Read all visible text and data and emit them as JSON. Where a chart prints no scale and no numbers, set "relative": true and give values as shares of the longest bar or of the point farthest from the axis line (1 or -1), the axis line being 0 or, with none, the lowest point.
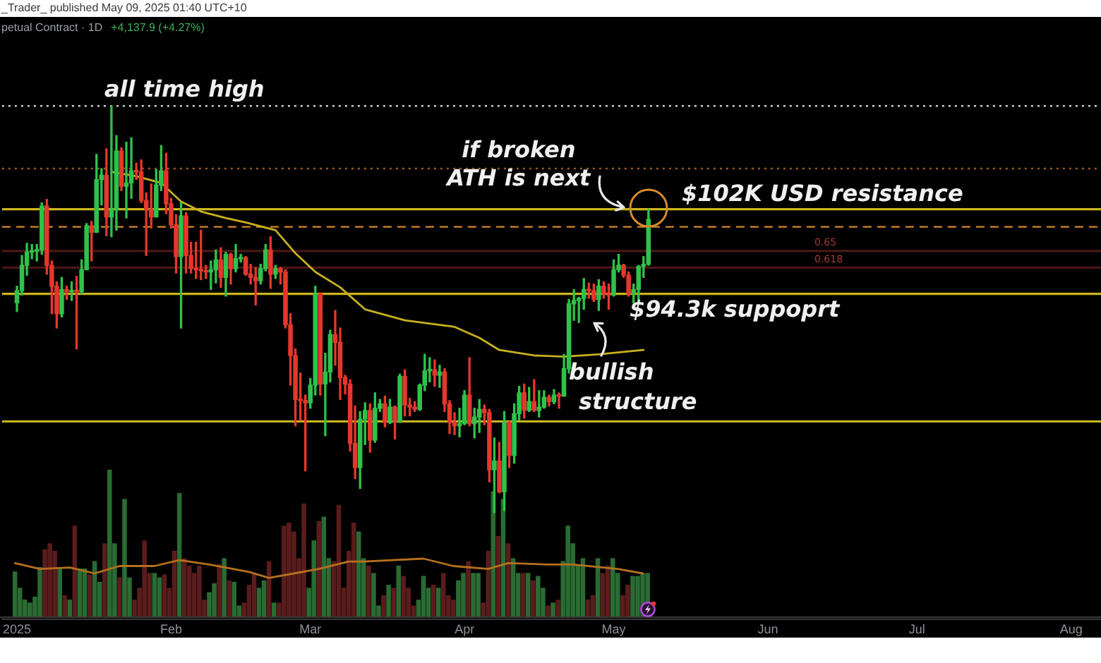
{
  "chart_data": [
    {
      "type": "candlestick",
      "title": "petual Contract · 1D",
      "subtitle": "+4,137.9 (+4.27%)",
      "annotations": [
        "_Trader_ published May 09, 2025 01:40 UTC+10",
        {
          "text": "if broken\nATH is next",
          "x": "2025-05-08",
          "y": 102000
        },
        "bullish\nstructure",
        "0.65",
        "0.618"
      ],
      "xlim": [
        "2024-12-29",
        "2025-08-07"
      ],
      "xticks": [
        {
          "value": "2025-01-01",
          "label": "2025"
        },
        {
          "value": "2025-02-01",
          "label": "Feb"
        },
        {
          "value": "2025-03-01",
          "label": "Mar"
        },
        {
          "value": "2025-04-01",
          "label": "Apr"
        },
        {
          "value": "2025-05-01",
          "label": "May"
        },
        {
          "value": "2025-06-01",
          "label": "Jun"
        },
        {
          "value": "2025-07-01",
          "label": "Jul"
        },
        {
          "value": "2025-08-01",
          "label": "Aug"
        }
      ],
      "ylim": [
        64700,
        119500
      ],
      "tick_labels": "x",
      "ref_lines": [
        {
          "axis": "y",
          "value": 111400,
          "label": "all time high",
          "color": "#cfcfcf",
          "line_style": "dotted"
        },
        {
          "axis": "y",
          "value": 105700,
          "color": "#9a5a1c",
          "line_style": "dotted"
        },
        {
          "axis": "y",
          "value": 102000,
          "label": "$102K USD resistance",
          "color": "#cbb41e",
          "line_style": "solid"
        },
        {
          "axis": "y",
          "value": 100400,
          "color": "#d4862a",
          "line_style": "dashed"
        },
        {
          "axis": "y",
          "value": 98200,
          "color": "#4a1717",
          "line_style": "solid"
        },
        {
          "axis": "y",
          "value": 96700,
          "color": "#4a1717",
          "line_style": "solid"
        },
        {
          "axis": "y",
          "value": 94300,
          "label": "$94.3k suppoprt",
          "color": "#cbb41e",
          "line_style": "solid"
        },
        {
          "axis": "y",
          "value": 82700,
          "color": "#cbb41e",
          "line_style": "solid"
        }
      ],
      "series": [
        {
          "x": [
            "2025-01-01",
            "2025-01-02",
            "2025-01-03",
            "2025-01-04",
            "2025-01-05",
            "2025-01-06",
            "2025-01-07",
            "2025-01-08",
            "2025-01-09",
            "2025-01-10",
            "2025-01-11",
            "2025-01-12",
            "2025-01-13",
            "2025-01-14",
            "2025-01-15",
            "2025-01-16",
            "2025-01-17",
            "2025-01-18",
            "2025-01-19",
            "2025-01-20",
            "2025-01-21",
            "2025-01-22",
            "2025-01-23",
            "2025-01-24",
            "2025-01-25",
            "2025-01-26",
            "2025-01-27",
            "2025-01-28",
            "2025-01-29",
            "2025-01-30",
            "2025-01-31",
            "2025-02-01",
            "2025-02-02",
            "2025-02-03",
            "2025-02-04",
            "2025-02-05",
            "2025-02-06",
            "2025-02-07",
            "2025-02-08",
            "2025-02-09",
            "2025-02-10",
            "2025-02-11",
            "2025-02-12",
            "2025-02-13",
            "2025-02-14",
            "2025-02-15",
            "2025-02-16",
            "2025-02-17",
            "2025-02-18",
            "2025-02-19",
            "2025-02-20",
            "2025-02-21",
            "2025-02-22",
            "2025-02-23",
            "2025-02-24",
            "2025-02-25",
            "2025-02-26",
            "2025-02-27",
            "2025-02-28",
            "2025-03-01",
            "2025-03-02",
            "2025-03-03",
            "2025-03-04",
            "2025-03-05",
            "2025-03-06",
            "2025-03-07",
            "2025-03-08",
            "2025-03-09",
            "2025-03-10",
            "2025-03-11",
            "2025-03-12",
            "2025-03-13",
            "2025-03-14",
            "2025-03-15",
            "2025-03-16",
            "2025-03-17",
            "2025-03-18",
            "2025-03-19",
            "2025-03-20",
            "2025-03-21",
            "2025-03-22",
            "2025-03-23",
            "2025-03-24",
            "2025-03-25",
            "2025-03-26",
            "2025-03-27",
            "2025-03-28",
            "2025-03-29",
            "2025-03-30",
            "2025-03-31",
            "2025-04-01",
            "2025-04-02",
            "2025-04-03",
            "2025-04-04",
            "2025-04-05",
            "2025-04-06",
            "2025-04-07",
            "2025-04-08",
            "2025-04-09",
            "2025-04-10",
            "2025-04-11",
            "2025-04-12",
            "2025-04-13",
            "2025-04-14",
            "2025-04-15",
            "2025-04-16",
            "2025-04-17",
            "2025-04-18",
            "2025-04-19",
            "2025-04-20",
            "2025-04-21",
            "2025-04-22",
            "2025-04-23",
            "2025-04-24",
            "2025-04-25",
            "2025-04-26",
            "2025-04-27",
            "2025-04-28",
            "2025-04-29",
            "2025-04-30",
            "2025-05-01",
            "2025-05-02",
            "2025-05-03",
            "2025-05-04",
            "2025-05-05",
            "2025-05-06",
            "2025-05-07",
            "2025-05-08"
          ],
          "ohlc": [
            [
              93500,
              95000,
              92700,
              94600
            ],
            [
              94600,
              97800,
              94200,
              96900
            ],
            [
              96900,
              98900,
              96000,
              98100
            ],
            [
              98100,
              98800,
              97500,
              98200
            ],
            [
              98200,
              98800,
              97300,
              98300
            ],
            [
              98300,
              102600,
              97900,
              102300
            ],
            [
              102300,
              102900,
              96100,
              96900
            ],
            [
              96900,
              97300,
              92500,
              95000
            ],
            [
              95000,
              95400,
              91200,
              92500
            ],
            [
              92500,
              95800,
              92200,
              94700
            ],
            [
              94700,
              95000,
              93800,
              94500
            ],
            [
              94500,
              95400,
              93700,
              94600
            ],
            [
              94600,
              95900,
              89300,
              94500
            ],
            [
              94500,
              97400,
              94300,
              96500
            ],
            [
              96500,
              100700,
              96500,
              100500
            ],
            [
              100500,
              100900,
              97300,
              99900
            ],
            [
              99900,
              107000,
              99900,
              104700
            ],
            [
              104700,
              105700,
              102400,
              105100
            ],
            [
              105100,
              107500,
              99600,
              101300
            ],
            [
              101300,
              111400,
              99500,
              102000
            ],
            [
              102000,
              108700,
              100100,
              107300
            ],
            [
              107300,
              107600,
              103700,
              104100
            ],
            [
              104100,
              108100,
              101200,
              104400
            ],
            [
              104400,
              108500,
              103000,
              105500
            ],
            [
              105500,
              106200,
              104700,
              105400
            ],
            [
              105400,
              106500,
              102600,
              102800
            ],
            [
              102800,
              103500,
              97800,
              102000
            ],
            [
              102000,
              104300,
              100300,
              101300
            ],
            [
              101300,
              105600,
              101300,
              104200
            ],
            [
              104200,
              107800,
              103700,
              105500
            ],
            [
              105500,
              107100,
              101600,
              102500
            ],
            [
              102500,
              103000,
              100300,
              100600
            ],
            [
              100600,
              101500,
              96200,
              97700
            ],
            [
              97700,
              102600,
              91200,
              101400
            ],
            [
              101400,
              101700,
              96200,
              97800
            ],
            [
              97800,
              99000,
              96200,
              96600
            ],
            [
              96600,
              99000,
              95700,
              96500
            ],
            [
              96500,
              100100,
              95600,
              96400
            ],
            [
              96400,
              96900,
              95700,
              96300
            ],
            [
              96300,
              97300,
              94700,
              96500
            ],
            [
              96500,
              98300,
              95300,
              97400
            ],
            [
              97400,
              98500,
              94900,
              95800
            ],
            [
              95800,
              98100,
              94100,
              97900
            ],
            [
              97900,
              98000,
              95200,
              96600
            ],
            [
              96600,
              98800,
              96300,
              97500
            ],
            [
              97500,
              97900,
              97200,
              97600
            ],
            [
              97600,
              97700,
              96000,
              96100
            ],
            [
              96100,
              97000,
              95200,
              95800
            ],
            [
              95800,
              96700,
              93300,
              95500
            ],
            [
              95500,
              97000,
              95200,
              96600
            ],
            [
              96600,
              98800,
              96400,
              98300
            ],
            [
              98300,
              99500,
              94800,
              96100
            ],
            [
              96100,
              96900,
              95700,
              96600
            ],
            [
              96600,
              96700,
              95200,
              96300
            ],
            [
              96300,
              96500,
              91200,
              91500
            ],
            [
              91500,
              92500,
              86000,
              88700
            ],
            [
              88700,
              89300,
              82300,
              84700
            ],
            [
              84700,
              87100,
              82800,
              84600
            ],
            [
              84600,
              85100,
              78200,
              84400
            ],
            [
              84400,
              86600,
              83900,
              86000
            ],
            [
              86000,
              95000,
              85100,
              94300
            ],
            [
              94300,
              94400,
              85100,
              86100
            ],
            [
              86100,
              88900,
              81400,
              87200
            ],
            [
              87200,
              91000,
              86300,
              90600
            ],
            [
              90600,
              92800,
              87800,
              89900
            ],
            [
              89900,
              91200,
              84700,
              86700
            ],
            [
              86700,
              86900,
              85200,
              86100
            ],
            [
              86100,
              86500,
              80000,
              80700
            ],
            [
              80700,
              84100,
              77500,
              78500
            ],
            [
              78500,
              83600,
              76600,
              82900
            ],
            [
              82900,
              84400,
              80600,
              83700
            ],
            [
              83700,
              84300,
              79900,
              81000
            ],
            [
              81000,
              85300,
              80800,
              83900
            ],
            [
              83900,
              84700,
              83600,
              84300
            ],
            [
              84300,
              85000,
              82200,
              82600
            ],
            [
              82600,
              84700,
              82500,
              84000
            ],
            [
              84000,
              84100,
              81100,
              82700
            ],
            [
              82700,
              87000,
              82600,
              86800
            ],
            [
              86800,
              87400,
              83200,
              84200
            ],
            [
              84200,
              84800,
              83200,
              84000
            ],
            [
              84000,
              84500,
              83600,
              83800
            ],
            [
              83800,
              86100,
              83700,
              86000
            ],
            [
              86000,
              88800,
              85500,
              87300
            ],
            [
              87300,
              88500,
              86300,
              87400
            ],
            [
              87400,
              88300,
              85900,
              86900
            ],
            [
              86900,
              87800,
              85800,
              87200
            ],
            [
              87200,
              87500,
              83600,
              84300
            ],
            [
              84300,
              84600,
              81600,
              82600
            ],
            [
              82600,
              83500,
              81500,
              82300
            ],
            [
              82300,
              83900,
              81300,
              82500
            ],
            [
              82500,
              85500,
              82400,
              85100
            ],
            [
              85100,
              88500,
              82300,
              82500
            ],
            [
              82500,
              83900,
              81200,
              83100
            ],
            [
              83100,
              84700,
              81700,
              83800
            ],
            [
              83800,
              84200,
              82400,
              83500
            ],
            [
              83500,
              83800,
              77200,
              78300
            ],
            [
              78300,
              81200,
              74400,
              79100
            ],
            [
              79100,
              80800,
              76200,
              76300
            ],
            [
              76300,
              83600,
              74600,
              82600
            ],
            [
              82600,
              82700,
              78500,
              79600
            ],
            [
              79600,
              84300,
              78900,
              83400
            ],
            [
              83400,
              85900,
              82800,
              85300
            ],
            [
              85300,
              86100,
              83000,
              83700
            ],
            [
              83700,
              85800,
              83600,
              84500
            ],
            [
              84500,
              86500,
              83600,
              83700
            ],
            [
              83700,
              85500,
              83100,
              84000
            ],
            [
              84000,
              85500,
              83900,
              84900
            ],
            [
              84900,
              85100,
              84100,
              84500
            ],
            [
              84500,
              85600,
              84300,
              85100
            ],
            [
              85100,
              85300,
              83900,
              85000
            ],
            [
              85000,
              88800,
              85000,
              87500
            ],
            [
              87500,
              93800,
              87100,
              93400
            ],
            [
              93400,
              94700,
              91900,
              93700
            ],
            [
              93700,
              94000,
              91700,
              93900
            ],
            [
              93900,
              95700,
              92900,
              94700
            ],
            [
              94700,
              95300,
              93900,
              94600
            ],
            [
              94600,
              95200,
              93600,
              93800
            ],
            [
              93800,
              95600,
              92800,
              95000
            ],
            [
              95000,
              95400,
              93900,
              94300
            ],
            [
              94300,
              95200,
              92900,
              94200
            ],
            [
              94200,
              97400,
              94100,
              96500
            ],
            [
              96500,
              97900,
              96300,
              96900
            ],
            [
              96900,
              97000,
              95800,
              96000
            ],
            [
              96000,
              96300,
              94100,
              94300
            ],
            [
              94300,
              95200,
              93500,
              94700
            ],
            [
              94700,
              96900,
              93400,
              96800
            ],
            [
              96800,
              97700,
              95800,
              97000
            ],
            [
              97000,
              102000,
              96900,
              101100
            ]
          ],
          "colors": [
            "#2fc24a",
            "#2fc24a",
            "#2fc24a",
            "#2fc24a",
            "#2fc24a",
            "#2fc24a",
            "#e5372d",
            "#e5372d",
            "#e5372d",
            "#2fc24a",
            "#e5372d",
            "#2fc24a",
            "#e5372d",
            "#2fc24a",
            "#2fc24a",
            "#e5372d",
            "#2fc24a",
            "#2fc24a",
            "#e5372d",
            "#2fc24a",
            "#2fc24a",
            "#e5372d",
            "#2fc24a",
            "#2fc24a",
            "#e5372d",
            "#e5372d",
            "#e5372d",
            "#e5372d",
            "#2fc24a",
            "#2fc24a",
            "#e5372d",
            "#e5372d",
            "#e5372d",
            "#2fc24a",
            "#e5372d",
            "#e5372d",
            "#e5372d",
            "#e5372d",
            "#e5372d",
            "#2fc24a",
            "#2fc24a",
            "#e5372d",
            "#2fc24a",
            "#e5372d",
            "#2fc24a",
            "#2fc24a",
            "#e5372d",
            "#e5372d",
            "#e5372d",
            "#2fc24a",
            "#2fc24a",
            "#e5372d",
            "#2fc24a",
            "#e5372d",
            "#e5372d",
            "#e5372d",
            "#e5372d",
            "#e5372d",
            "#e5372d",
            "#2fc24a",
            "#2fc24a",
            "#e5372d",
            "#2fc24a",
            "#2fc24a",
            "#e5372d",
            "#e5372d",
            "#e5372d",
            "#e5372d",
            "#e5372d",
            "#2fc24a",
            "#2fc24a",
            "#e5372d",
            "#2fc24a",
            "#2fc24a",
            "#e5372d",
            "#2fc24a",
            "#e5372d",
            "#2fc24a",
            "#e5372d",
            "#e5372d",
            "#e5372d",
            "#2fc24a",
            "#2fc24a",
            "#2fc24a",
            "#e5372d",
            "#2fc24a",
            "#e5372d",
            "#e5372d",
            "#e5372d",
            "#2fc24a",
            "#2fc24a",
            "#e5372d",
            "#2fc24a",
            "#2fc24a",
            "#e5372d",
            "#e5372d",
            "#2fc24a",
            "#e5372d",
            "#2fc24a",
            "#e5372d",
            "#2fc24a",
            "#2fc24a",
            "#e5372d",
            "#2fc24a",
            "#e5372d",
            "#2fc24a",
            "#2fc24a",
            "#e5372d",
            "#2fc24a",
            "#e5372d",
            "#2fc24a",
            "#2fc24a",
            "#2fc24a",
            "#2fc24a",
            "#2fc24a",
            "#e5372d",
            "#e5372d",
            "#2fc24a",
            "#e5372d",
            "#e5372d",
            "#2fc24a",
            "#2fc24a",
            "#e5372d",
            "#e5372d",
            "#2fc24a",
            "#2fc24a",
            "#2fc24a",
            "#2fc24a"
          ]
        },
        {
          "type": "line",
          "x": [
            "2025-01-20",
            "2025-01-25",
            "2025-01-30",
            "2025-02-03",
            "2025-02-07",
            "2025-02-12",
            "2025-02-16",
            "2025-02-22",
            "2025-02-26",
            "2025-03-02",
            "2025-03-07",
            "2025-03-12",
            "2025-03-20",
            "2025-03-30",
            "2025-04-04",
            "2025-04-08",
            "2025-04-15",
            "2025-04-21",
            "2025-04-28",
            "2025-05-07"
          ],
          "values": [
            105400,
            105000,
            104400,
            102700,
            101800,
            101200,
            100800,
            100100,
            98000,
            96300,
            94900,
            92900,
            91900,
            91300,
            90300,
            89200,
            88700,
            88600,
            88800,
            89200
          ],
          "color": "#c8b020"
        }
      ]
    },
    {
      "type": "bar",
      "relative": true,
      "xlim": [
        "2024-12-29",
        "2025-08-07"
      ],
      "tick_labels": false,
      "x": [
        "2025-01-01",
        "2025-01-02",
        "2025-01-03",
        "2025-01-04",
        "2025-01-05",
        "2025-01-06",
        "2025-01-07",
        "2025-01-08",
        "2025-01-09",
        "2025-01-10",
        "2025-01-11",
        "2025-01-12",
        "2025-01-13",
        "2025-01-14",
        "2025-01-15",
        "2025-01-16",
        "2025-01-17",
        "2025-01-18",
        "2025-01-19",
        "2025-01-20",
        "2025-01-21",
        "2025-01-22",
        "2025-01-23",
        "2025-01-24",
        "2025-01-25",
        "2025-01-26",
        "2025-01-27",
        "2025-01-28",
        "2025-01-29",
        "2025-01-30",
        "2025-01-31",
        "2025-02-01",
        "2025-02-02",
        "2025-02-03",
        "2025-02-04",
        "2025-02-05",
        "2025-02-06",
        "2025-02-07",
        "2025-02-08",
        "2025-02-09",
        "2025-02-10",
        "2025-02-11",
        "2025-02-12",
        "2025-02-13",
        "2025-02-14",
        "2025-02-15",
        "2025-02-16",
        "2025-02-17",
        "2025-02-18",
        "2025-02-19",
        "2025-02-20",
        "2025-02-21",
        "2025-02-22",
        "2025-02-23",
        "2025-02-24",
        "2025-02-25",
        "2025-02-26",
        "2025-02-27",
        "2025-02-28",
        "2025-03-01",
        "2025-03-02",
        "2025-03-03",
        "2025-03-04",
        "2025-03-05",
        "2025-03-06",
        "2025-03-07",
        "2025-03-08",
        "2025-03-09",
        "2025-03-10",
        "2025-03-11",
        "2025-03-12",
        "2025-03-13",
        "2025-03-14",
        "2025-03-15",
        "2025-03-16",
        "2025-03-17",
        "2025-03-18",
        "2025-03-19",
        "2025-03-20",
        "2025-03-21",
        "2025-03-22",
        "2025-03-23",
        "2025-03-24",
        "2025-03-25",
        "2025-03-26",
        "2025-03-27",
        "2025-03-28",
        "2025-03-29",
        "2025-03-30",
        "2025-03-31",
        "2025-04-01",
        "2025-04-02",
        "2025-04-03",
        "2025-04-04",
        "2025-04-05",
        "2025-04-06",
        "2025-04-07",
        "2025-04-08",
        "2025-04-09",
        "2025-04-10",
        "2025-04-11",
        "2025-04-12",
        "2025-04-13",
        "2025-04-14",
        "2025-04-15",
        "2025-04-16",
        "2025-04-17",
        "2025-04-18",
        "2025-04-19",
        "2025-04-20",
        "2025-04-21",
        "2025-04-22",
        "2025-04-23",
        "2025-04-24",
        "2025-04-25",
        "2025-04-26",
        "2025-04-27",
        "2025-04-28",
        "2025-04-29",
        "2025-04-30",
        "2025-05-01",
        "2025-05-02",
        "2025-05-03",
        "2025-05-04",
        "2025-05-05",
        "2025-05-06",
        "2025-05-07",
        "2025-05-08"
      ],
      "series": [
        {
          "values": [
            0.31,
            0.2,
            0.12,
            0.1,
            0.14,
            0.34,
            0.46,
            0.5,
            0.45,
            0.34,
            0.15,
            0.12,
            0.62,
            0.33,
            0.33,
            0.29,
            0.38,
            0.24,
            0.5,
            1.0,
            0.5,
            0.27,
            0.8,
            0.27,
            0.12,
            0.2,
            0.52,
            0.3,
            0.3,
            0.27,
            0.29,
            0.2,
            0.45,
            0.84,
            0.4,
            0.35,
            0.3,
            0.35,
            0.12,
            0.17,
            0.23,
            0.36,
            0.4,
            0.25,
            0.24,
            0.08,
            0.1,
            0.22,
            0.3,
            0.2,
            0.25,
            0.38,
            0.1,
            0.1,
            0.62,
            0.64,
            0.58,
            0.4,
            0.77,
            0.2,
            0.52,
            0.65,
            0.68,
            0.4,
            0.38,
            0.76,
            0.2,
            0.45,
            0.64,
            0.58,
            0.4,
            0.35,
            0.3,
            0.08,
            0.15,
            0.22,
            0.2,
            0.35,
            0.28,
            0.2,
            0.08,
            0.12,
            0.28,
            0.2,
            0.22,
            0.2,
            0.3,
            0.15,
            0.12,
            0.25,
            0.3,
            0.38,
            0.3,
            0.3,
            0.1,
            0.45,
            0.85,
            0.55,
            0.8,
            0.5,
            0.4,
            0.3,
            0.3,
            0.3,
            0.25,
            0.28,
            0.2,
            0.08,
            0.1,
            0.12,
            0.38,
            0.62,
            0.5,
            0.35,
            0.4,
            0.12,
            0.15,
            0.4,
            0.3,
            0.35,
            0.4,
            0.3,
            0.15,
            0.22,
            0.28,
            0.28,
            0.3,
            0.3
          ],
          "colors": [
            "#2a6b33",
            "#2a6b33",
            "#2a6b33",
            "#2a6b33",
            "#2a6b33",
            "#2a6b33",
            "#5a1c1c",
            "#5a1c1c",
            "#5a1c1c",
            "#2a6b33",
            "#5a1c1c",
            "#2a6b33",
            "#5a1c1c",
            "#2a6b33",
            "#2a6b33",
            "#5a1c1c",
            "#2a6b33",
            "#2a6b33",
            "#5a1c1c",
            "#2a6b33",
            "#2a6b33",
            "#5a1c1c",
            "#2a6b33",
            "#2a6b33",
            "#5a1c1c",
            "#5a1c1c",
            "#5a1c1c",
            "#5a1c1c",
            "#2a6b33",
            "#2a6b33",
            "#5a1c1c",
            "#5a1c1c",
            "#5a1c1c",
            "#2a6b33",
            "#5a1c1c",
            "#5a1c1c",
            "#5a1c1c",
            "#5a1c1c",
            "#5a1c1c",
            "#2a6b33",
            "#2a6b33",
            "#5a1c1c",
            "#2a6b33",
            "#5a1c1c",
            "#2a6b33",
            "#2a6b33",
            "#5a1c1c",
            "#5a1c1c",
            "#5a1c1c",
            "#2a6b33",
            "#2a6b33",
            "#5a1c1c",
            "#2a6b33",
            "#5a1c1c",
            "#5a1c1c",
            "#5a1c1c",
            "#5a1c1c",
            "#5a1c1c",
            "#5a1c1c",
            "#2a6b33",
            "#2a6b33",
            "#5a1c1c",
            "#2a6b33",
            "#2a6b33",
            "#5a1c1c",
            "#5a1c1c",
            "#5a1c1c",
            "#5a1c1c",
            "#5a1c1c",
            "#2a6b33",
            "#2a6b33",
            "#5a1c1c",
            "#2a6b33",
            "#2a6b33",
            "#5a1c1c",
            "#2a6b33",
            "#5a1c1c",
            "#2a6b33",
            "#5a1c1c",
            "#5a1c1c",
            "#5a1c1c",
            "#2a6b33",
            "#2a6b33",
            "#2a6b33",
            "#5a1c1c",
            "#2a6b33",
            "#5a1c1c",
            "#5a1c1c",
            "#5a1c1c",
            "#2a6b33",
            "#2a6b33",
            "#5a1c1c",
            "#2a6b33",
            "#2a6b33",
            "#5a1c1c",
            "#5a1c1c",
            "#2a6b33",
            "#5a1c1c",
            "#2a6b33",
            "#5a1c1c",
            "#2a6b33",
            "#2a6b33",
            "#5a1c1c",
            "#2a6b33",
            "#5a1c1c",
            "#2a6b33",
            "#2a6b33",
            "#5a1c1c",
            "#2a6b33",
            "#5a1c1c",
            "#2a6b33",
            "#2a6b33",
            "#2a6b33",
            "#2a6b33",
            "#2a6b33",
            "#5a1c1c",
            "#5a1c1c",
            "#2a6b33",
            "#5a1c1c",
            "#5a1c1c",
            "#2a6b33",
            "#2a6b33",
            "#5a1c1c",
            "#5a1c1c",
            "#2a6b33",
            "#2a6b33",
            "#2a6b33",
            "#2a6b33"
          ]
        },
        {
          "type": "line",
          "x": [
            "2025-01-01",
            "2025-01-06",
            "2025-01-12",
            "2025-01-17",
            "2025-01-22",
            "2025-01-29",
            "2025-02-03",
            "2025-02-09",
            "2025-02-17",
            "2025-02-21",
            "2025-02-26",
            "2025-03-03",
            "2025-03-09",
            "2025-03-12",
            "2025-03-24",
            "2025-03-30",
            "2025-04-06",
            "2025-04-10",
            "2025-04-18",
            "2025-04-23",
            "2025-05-02",
            "2025-05-07"
          ],
          "values": [
            0.37,
            0.33,
            0.34,
            0.3,
            0.35,
            0.35,
            0.39,
            0.36,
            0.31,
            0.27,
            0.3,
            0.33,
            0.38,
            0.38,
            0.4,
            0.35,
            0.33,
            0.37,
            0.36,
            0.36,
            0.33,
            0.3
          ],
          "color": "#b5701e"
        }
      ]
    }
  ]
}
